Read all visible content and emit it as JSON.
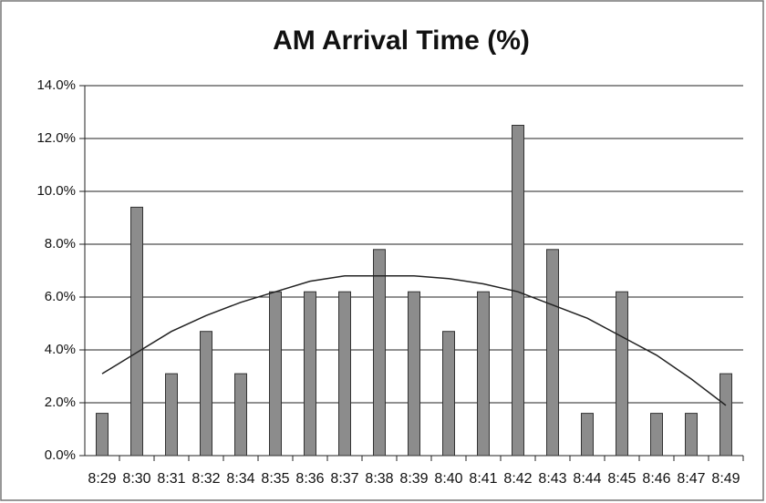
{
  "chart_data": {
    "type": "bar",
    "title": "AM Arrival Time (%)",
    "categories": [
      "8:29",
      "8:30",
      "8:31",
      "8:32",
      "8:34",
      "8:35",
      "8:36",
      "8:37",
      "8:38",
      "8:39",
      "8:40",
      "8:41",
      "8:42",
      "8:43",
      "8:44",
      "8:45",
      "8:46",
      "8:47",
      "8:49"
    ],
    "values": [
      1.6,
      9.4,
      3.1,
      4.7,
      3.1,
      6.2,
      6.2,
      6.2,
      7.8,
      6.2,
      4.7,
      6.2,
      12.5,
      7.8,
      1.6,
      6.2,
      1.6,
      1.6,
      3.1
    ],
    "color": "#8c8c8c",
    "trendline": {
      "color": "#222222",
      "values": [
        3.1,
        3.9,
        4.7,
        5.3,
        5.8,
        6.2,
        6.6,
        6.8,
        6.8,
        6.8,
        6.7,
        6.5,
        6.2,
        5.7,
        5.2,
        4.5,
        3.8,
        2.9,
        1.9
      ]
    },
    "ylim": [
      0,
      14
    ],
    "yticks": [
      {
        "value": 0,
        "label": "0.0%"
      },
      {
        "value": 2,
        "label": "2.0%"
      },
      {
        "value": 4,
        "label": "4.0%"
      },
      {
        "value": 6,
        "label": "6.0%"
      },
      {
        "value": 8,
        "label": "8.0%"
      },
      {
        "value": 10,
        "label": "10.0%"
      },
      {
        "value": 12,
        "label": "12.0%"
      },
      {
        "value": 14,
        "label": "14.0%"
      }
    ],
    "grid": true
  }
}
